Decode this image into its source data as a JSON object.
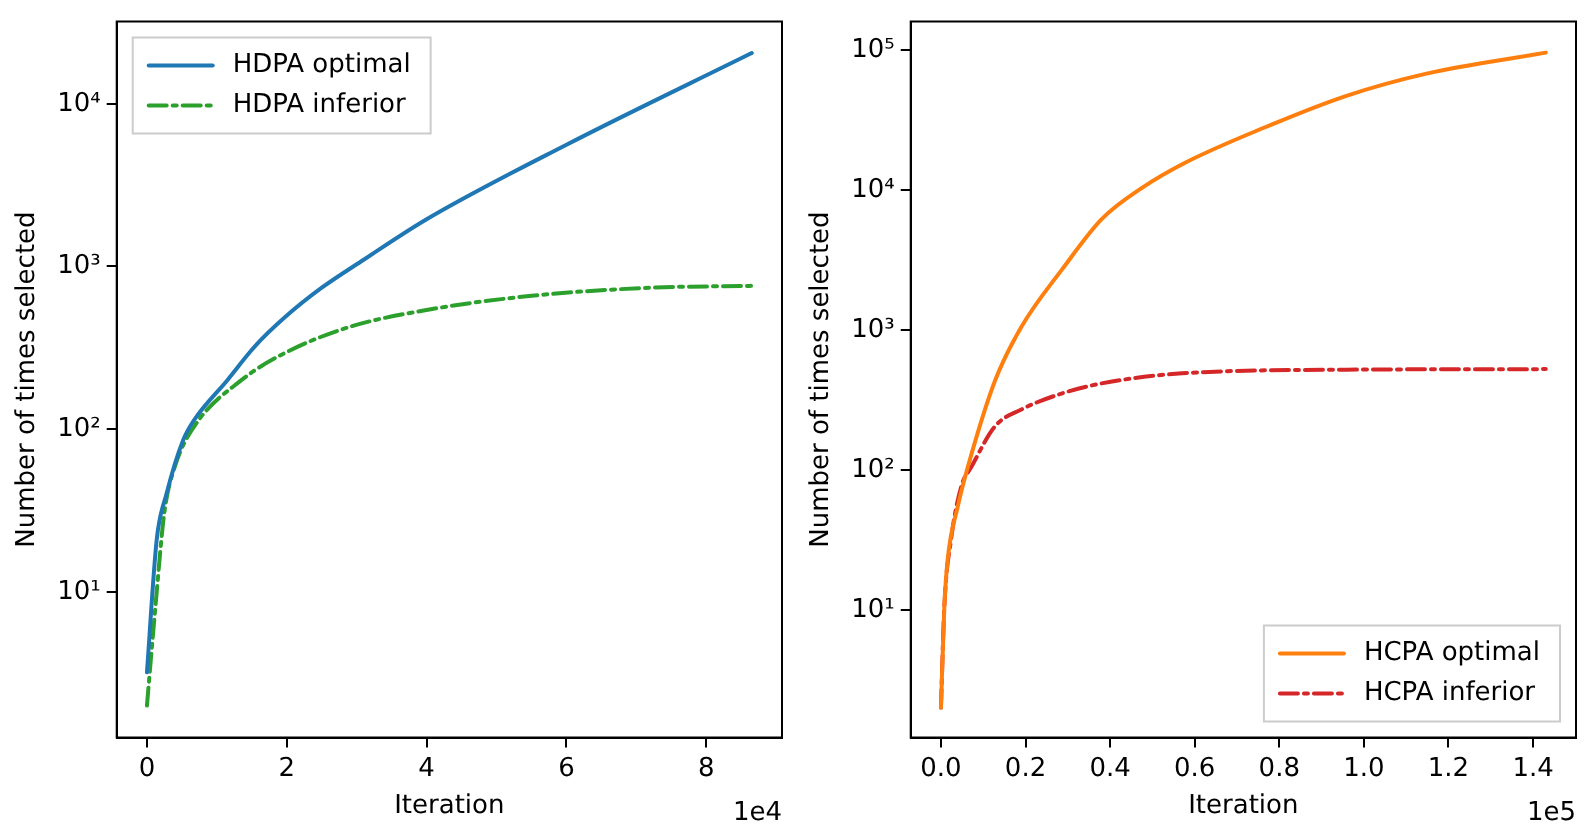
{
  "chart_data": [
    {
      "type": "line",
      "xlabel": "Iteration",
      "ylabel": "Number of times selected",
      "log": "y",
      "grid": false,
      "legend": "top left",
      "annotations": [
        "1e4"
      ],
      "xlim": [
        -0.4325,
        9.0825
      ],
      "xticks": [
        0,
        2,
        4,
        6,
        8
      ],
      "ylim": [
        1.27,
        32000
      ],
      "yticks": [
        {
          "value": 10,
          "label": "10¹"
        },
        {
          "value": 100,
          "label": "10²"
        },
        {
          "value": 1000,
          "label": "10³"
        },
        {
          "value": 10000,
          "label": "10⁴"
        }
      ],
      "series": [
        {
          "name": "HDPA optimal",
          "color": "#1f77b4",
          "line_style": "solid",
          "x": [
            0,
            0.14,
            0.28,
            0.52,
            0.67,
            1.15,
            1.55,
            1.98,
            2.5,
            3.1,
            4,
            6,
            8.65
          ],
          "values": [
            3.2,
            21,
            40,
            86,
            113,
            200,
            325,
            490,
            740,
            1100,
            1950,
            5600,
            20500
          ]
        },
        {
          "name": "HDPA inferior",
          "color": "#2ca02c",
          "line_style": "dashed",
          "x": [
            0,
            0.12,
            0.25,
            0.4,
            0.67,
            1.35,
            1.98,
            2.9,
            4,
            5.5,
            7.2,
            8.65
          ],
          "values": [
            2,
            8,
            31,
            59,
            103,
            200,
            295,
            425,
            540,
            660,
            740,
            760
          ]
        }
      ]
    },
    {
      "type": "line",
      "xlabel": "Iteration",
      "ylabel": "Number of times selected",
      "log": "y",
      "grid": false,
      "legend": "bottom right",
      "annotations": [
        "1e5"
      ],
      "xlim": [
        -0.0715,
        1.5015
      ],
      "xticks": [
        {
          "value": 0,
          "label": "0.0"
        },
        0.2,
        0.4,
        0.6,
        0.8,
        {
          "value": 1,
          "label": "1.0"
        },
        1.2,
        1.4
      ],
      "ylim": [
        1.22,
        160000
      ],
      "yticks": [
        {
          "value": 10,
          "label": "10¹"
        },
        {
          "value": 100,
          "label": "10²"
        },
        {
          "value": 1000,
          "label": "10³"
        },
        {
          "value": 10000,
          "label": "10⁴"
        },
        {
          "value": 100000,
          "label": "10⁵"
        }
      ],
      "series": [
        {
          "name": "HCPA optimal",
          "color": "#ff7f0e",
          "line_style": "solid",
          "x": [
            0,
            0.008,
            0.016,
            0.04,
            0.064,
            0.128,
            0.19,
            0.29,
            0.38,
            0.478,
            0.574,
            0.765,
            0.957,
            1.148,
            1.43
          ],
          "values": [
            2,
            10.5,
            23,
            55,
            106,
            435,
            1050,
            2800,
            6200,
            10500,
            15500,
            28000,
            47000,
            68000,
            96000
          ]
        },
        {
          "name": "HCPA inferior",
          "color": "#d62728",
          "line_style": "dashed",
          "x": [
            0,
            0.008,
            0.024,
            0.048,
            0.072,
            0.128,
            0.19,
            0.29,
            0.38,
            0.57,
            0.96,
            1.43
          ],
          "values": [
            2,
            10.5,
            32,
            76,
            105,
            205,
            270,
            355,
            415,
            490,
            520,
            525
          ]
        }
      ]
    }
  ]
}
